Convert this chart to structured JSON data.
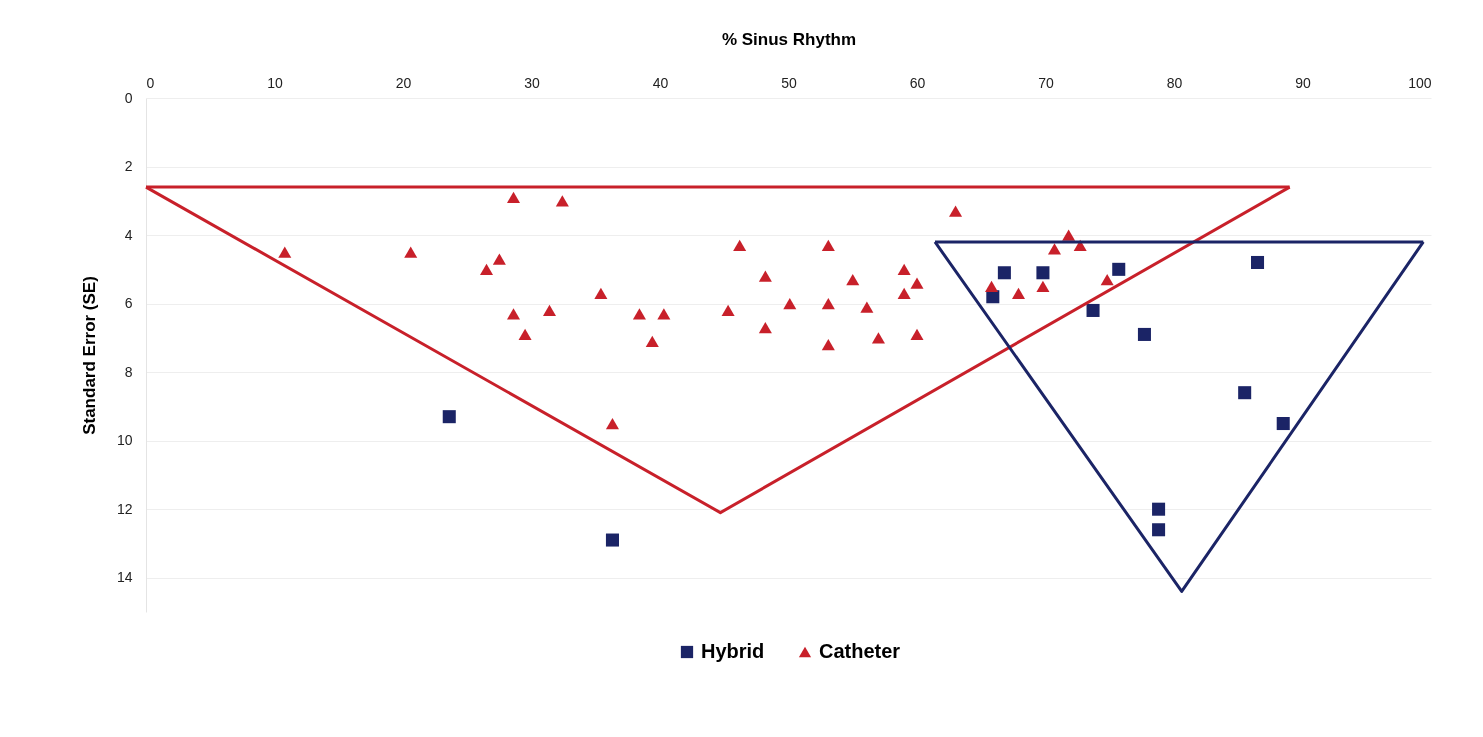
{
  "chart_data": {
    "type": "scatter",
    "xlabel": "% Sinus Rhythm",
    "ylabel": "Standard Error (SE)",
    "xlim": [
      0,
      100
    ],
    "xticks": [
      0,
      10,
      20,
      30,
      40,
      50,
      60,
      70,
      80,
      90,
      100
    ],
    "ylim": [
      15,
      0
    ],
    "yticks": [
      0,
      2,
      4,
      6,
      8,
      10,
      12,
      14
    ],
    "grid": "y",
    "legend": "bottom",
    "series": [
      {
        "name": "Hybrid",
        "color": "#1b2466",
        "marker": "square",
        "x": [
          23.6,
          36.3,
          66.8,
          69.8,
          65.9,
          73.7,
          75.7,
          77.7,
          86.5,
          85.5,
          88.5,
          78.8,
          78.8
        ],
        "values": [
          9.3,
          12.9,
          5.1,
          5.1,
          5.8,
          6.2,
          5.0,
          6.9,
          4.8,
          8.6,
          9.5,
          12.0,
          12.6
        ]
      },
      {
        "name": "Catheter",
        "color": "#c8202a",
        "marker": "triangle",
        "x": [
          10.8,
          20.6,
          26.5,
          27.5,
          28.6,
          32.4,
          35.4,
          28.6,
          31.4,
          29.5,
          36.3,
          63.0,
          46.2,
          53.1,
          48.2,
          55.0,
          59.0,
          60.0,
          59.0,
          50.1,
          53.1,
          56.1,
          45.3,
          38.4,
          40.3,
          39.4,
          48.2,
          53.1,
          57.0,
          60.0,
          65.8,
          67.9,
          69.8,
          71.8,
          70.7,
          72.7,
          74.8
        ],
        "values": [
          4.5,
          4.5,
          5.0,
          4.7,
          2.9,
          3.0,
          5.7,
          6.3,
          6.2,
          6.9,
          9.5,
          3.3,
          4.3,
          4.3,
          5.2,
          5.3,
          5.0,
          5.4,
          5.7,
          6.0,
          6.0,
          6.1,
          6.2,
          6.3,
          6.3,
          7.1,
          6.7,
          7.2,
          7.0,
          6.9,
          5.5,
          5.7,
          5.5,
          4.0,
          4.4,
          4.3,
          5.3
        ]
      },
      {
        "type": "line",
        "color": "#c8202a",
        "line_style": "solid",
        "x": [
          0,
          89
        ],
        "values": [
          2.6,
          2.6
        ]
      },
      {
        "type": "line",
        "color": "#c8202a",
        "line_style": "solid",
        "x": [
          0,
          44.7,
          89
        ],
        "values": [
          2.6,
          12.1,
          2.6
        ]
      },
      {
        "type": "line",
        "color": "#1b2466",
        "line_style": "solid",
        "x": [
          61.4,
          99.4
        ],
        "values": [
          4.2,
          4.2
        ]
      },
      {
        "type": "line",
        "color": "#1b2466",
        "line_style": "solid",
        "x": [
          61.4,
          80.6,
          99.4
        ],
        "values": [
          4.2,
          14.4,
          4.2
        ]
      }
    ]
  }
}
